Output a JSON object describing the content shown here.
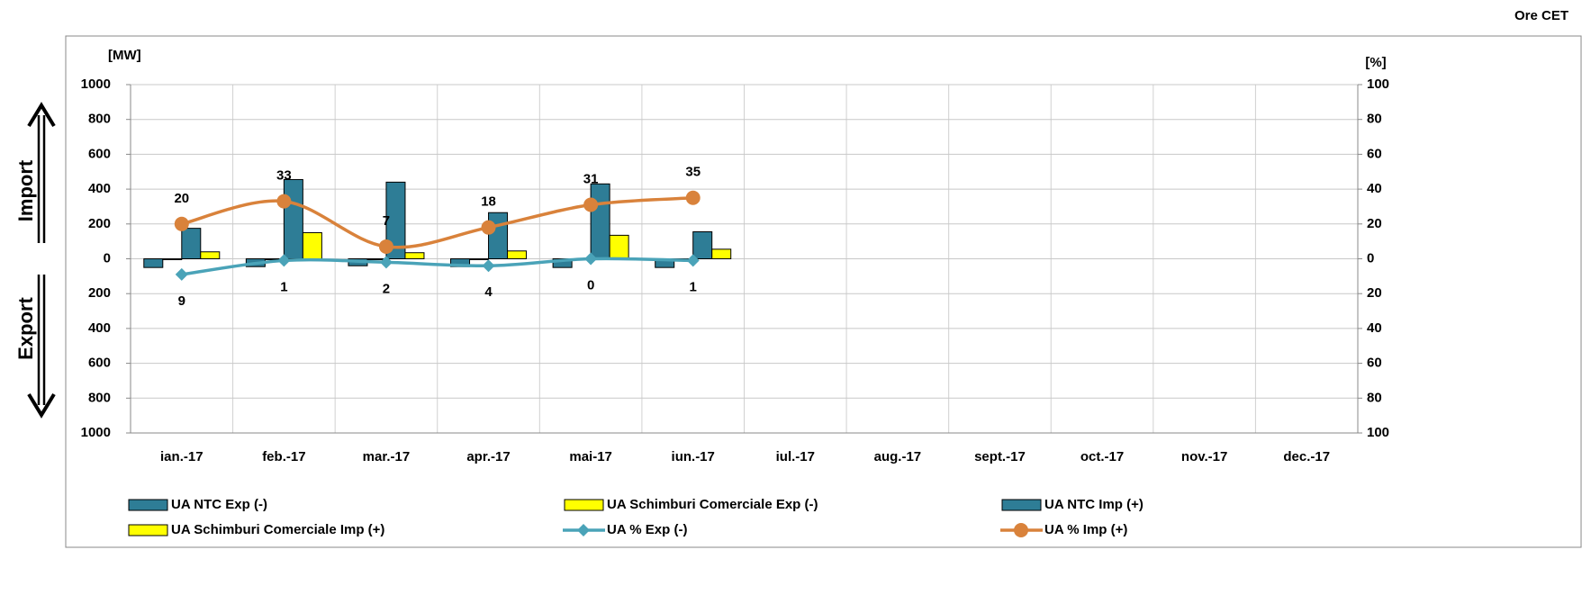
{
  "chart_data": {
    "type": "bar",
    "note_top": "Ore CET",
    "y_label": "[MW]",
    "y2_label": "[%]",
    "import_label": "Import",
    "export_label": "Export",
    "categories": [
      "ian.-17",
      "feb.-17",
      "mar.-17",
      "apr.-17",
      "mai-17",
      "iun.-17",
      "iul.-17",
      "aug.-17",
      "sept.-17",
      "oct.-17",
      "nov.-17",
      "dec.-17"
    ],
    "ylim": [
      -1000,
      1000
    ],
    "yticks": [
      {
        "value": 1000,
        "label": "1000"
      },
      800,
      600,
      400,
      200,
      0,
      {
        "value": -200,
        "label": "200"
      },
      {
        "value": -400,
        "label": "400"
      },
      {
        "value": -600,
        "label": "600"
      },
      {
        "value": -800,
        "label": "800"
      },
      {
        "value": -1000,
        "label": "1000"
      }
    ],
    "y2lim": [
      -100,
      100
    ],
    "y2ticks": [
      100,
      80,
      60,
      40,
      20,
      0,
      {
        "value": -20,
        "label": "20"
      },
      {
        "value": -40,
        "label": "40"
      },
      {
        "value": -60,
        "label": "60"
      },
      {
        "value": -80,
        "label": "80"
      },
      {
        "value": -100,
        "label": "100"
      }
    ],
    "grid": true,
    "series": [
      {
        "name": "UA NTC Exp (-)",
        "type": "bar",
        "color": "#2e7d96",
        "values": [
          -50,
          -45,
          -40,
          -45,
          -50,
          -50,
          null,
          null,
          null,
          null,
          null,
          null
        ]
      },
      {
        "name": "UA Schimburi Comerciale Exp (-)",
        "type": "bar",
        "color": "#ffff00",
        "values": [
          -5,
          -5,
          -5,
          -5,
          -5,
          -5,
          null,
          null,
          null,
          null,
          null,
          null
        ]
      },
      {
        "name": "UA NTC Imp (+)",
        "type": "bar",
        "color": "#2e7d96",
        "values": [
          175,
          455,
          440,
          265,
          430,
          155,
          null,
          null,
          null,
          null,
          null,
          null
        ]
      },
      {
        "name": "UA Schimburi Comerciale Imp (+)",
        "type": "bar",
        "color": "#ffff00",
        "values": [
          40,
          150,
          35,
          45,
          135,
          55,
          null,
          null,
          null,
          null,
          null,
          null
        ]
      },
      {
        "name": "UA % Exp (-)",
        "type": "line",
        "axis": "y2",
        "color": "#4aa3b8",
        "marker": "diamond",
        "label_color": "#ff0000",
        "values": [
          -9,
          -1,
          -2,
          -4,
          0,
          -1,
          null,
          null,
          null,
          null,
          null,
          null
        ],
        "value_labels": [
          "9",
          "1",
          "2",
          "4",
          "0",
          "1",
          null,
          null,
          null,
          null,
          null,
          null
        ]
      },
      {
        "name": "UA % Imp (+)",
        "type": "line",
        "axis": "y2",
        "color": "#d9823b",
        "marker": "circle",
        "label_color": "#000000",
        "values": [
          20,
          33,
          7,
          18,
          31,
          35,
          null,
          null,
          null,
          null,
          null,
          null
        ]
      }
    ]
  }
}
